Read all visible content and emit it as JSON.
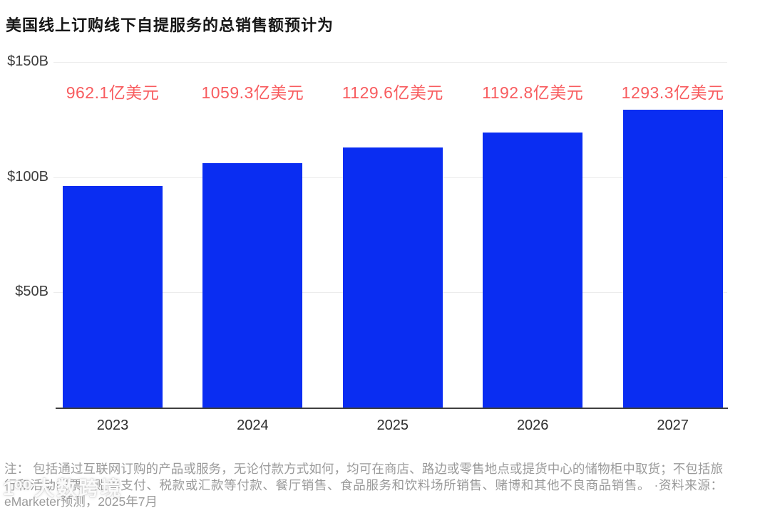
{
  "title": "美国线上订购线下自提服务的总销售额预计为",
  "chart_data": {
    "type": "bar",
    "title": "美国线上订购线下自提服务的总销售额预计为",
    "categories": [
      "2023",
      "2024",
      "2025",
      "2026",
      "2027"
    ],
    "values": [
      96.21,
      105.93,
      112.96,
      119.28,
      129.33
    ],
    "value_unit": "billion USD",
    "bar_labels": [
      "962.1亿美元",
      "1059.3亿美元",
      "1129.6亿美元",
      "1192.8亿美元",
      "1293.3亿美元"
    ],
    "y_ticks": [
      {
        "label": "$150B",
        "value": 150
      },
      {
        "label": "$100B",
        "value": 100
      },
      {
        "label": "$50B",
        "value": 50
      }
    ],
    "ylim": [
      0,
      150
    ],
    "grid": true,
    "colors": {
      "bar": "#0a2df2",
      "bar_label": "#f85c5f",
      "axis_line": "#3f3f3f",
      "gridline": "#ececec",
      "tick_text": "#3d3d3d"
    }
  },
  "footnote": "注： 包括通过互联网订购的产品或服务，无论付款方式如何，均可在商店、路边或零售地点或提货中心的储物柜中取货；不包括旅行和活动门票、账单支付、税款或汇款等付款、餐厅销售、食品服务和饮料场所销售、赌博和其他不良商品销售。 ·资料来源：eMarketer预测，2025年7月",
  "watermark": {
    "logo": "1⁰⁰",
    "text": "大数跨境"
  }
}
